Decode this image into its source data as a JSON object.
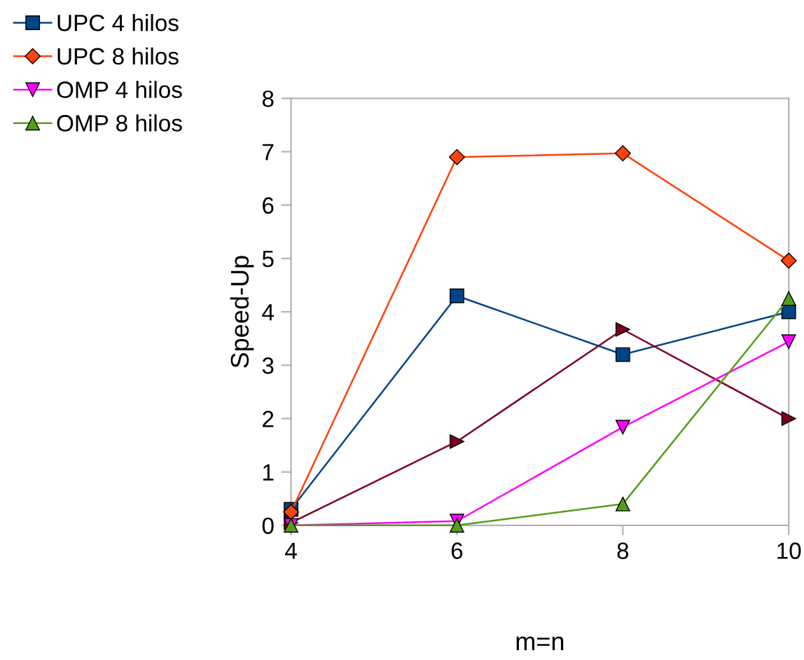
{
  "chart_data": {
    "type": "line",
    "xlabel": "m=n",
    "ylabel": "Speed-Up",
    "x": [
      4,
      6,
      8,
      10
    ],
    "xlim": [
      4,
      10
    ],
    "xticks": [
      4,
      6,
      8,
      10
    ],
    "ylim": [
      0,
      8
    ],
    "yticks": [
      0,
      1,
      2,
      3,
      4,
      5,
      6,
      7,
      8
    ],
    "grid": false,
    "legend": "top left",
    "series": [
      {
        "name": "UPC 4 hilos",
        "color": "#004586",
        "marker": "square",
        "values": [
          0.3,
          4.3,
          3.2,
          4.0
        ]
      },
      {
        "color": "#7e0021",
        "marker": "triangle",
        "values": [
          0.05,
          1.57,
          3.67,
          2.0
        ]
      },
      {
        "name": "UPC 8 hilos",
        "color": "#ff420e",
        "marker": "diamond",
        "values": [
          0.25,
          6.9,
          6.97,
          4.96
        ]
      },
      {
        "name": "OMP 4 hilos",
        "color": "#ff00ff",
        "marker": "triangle",
        "values": [
          0.0,
          0.08,
          1.84,
          3.44
        ]
      },
      {
        "name": "OMP 8 hilos",
        "color": "#579d1c",
        "marker": "triangle",
        "values": [
          0.0,
          0.0,
          0.4,
          4.25
        ]
      }
    ]
  }
}
